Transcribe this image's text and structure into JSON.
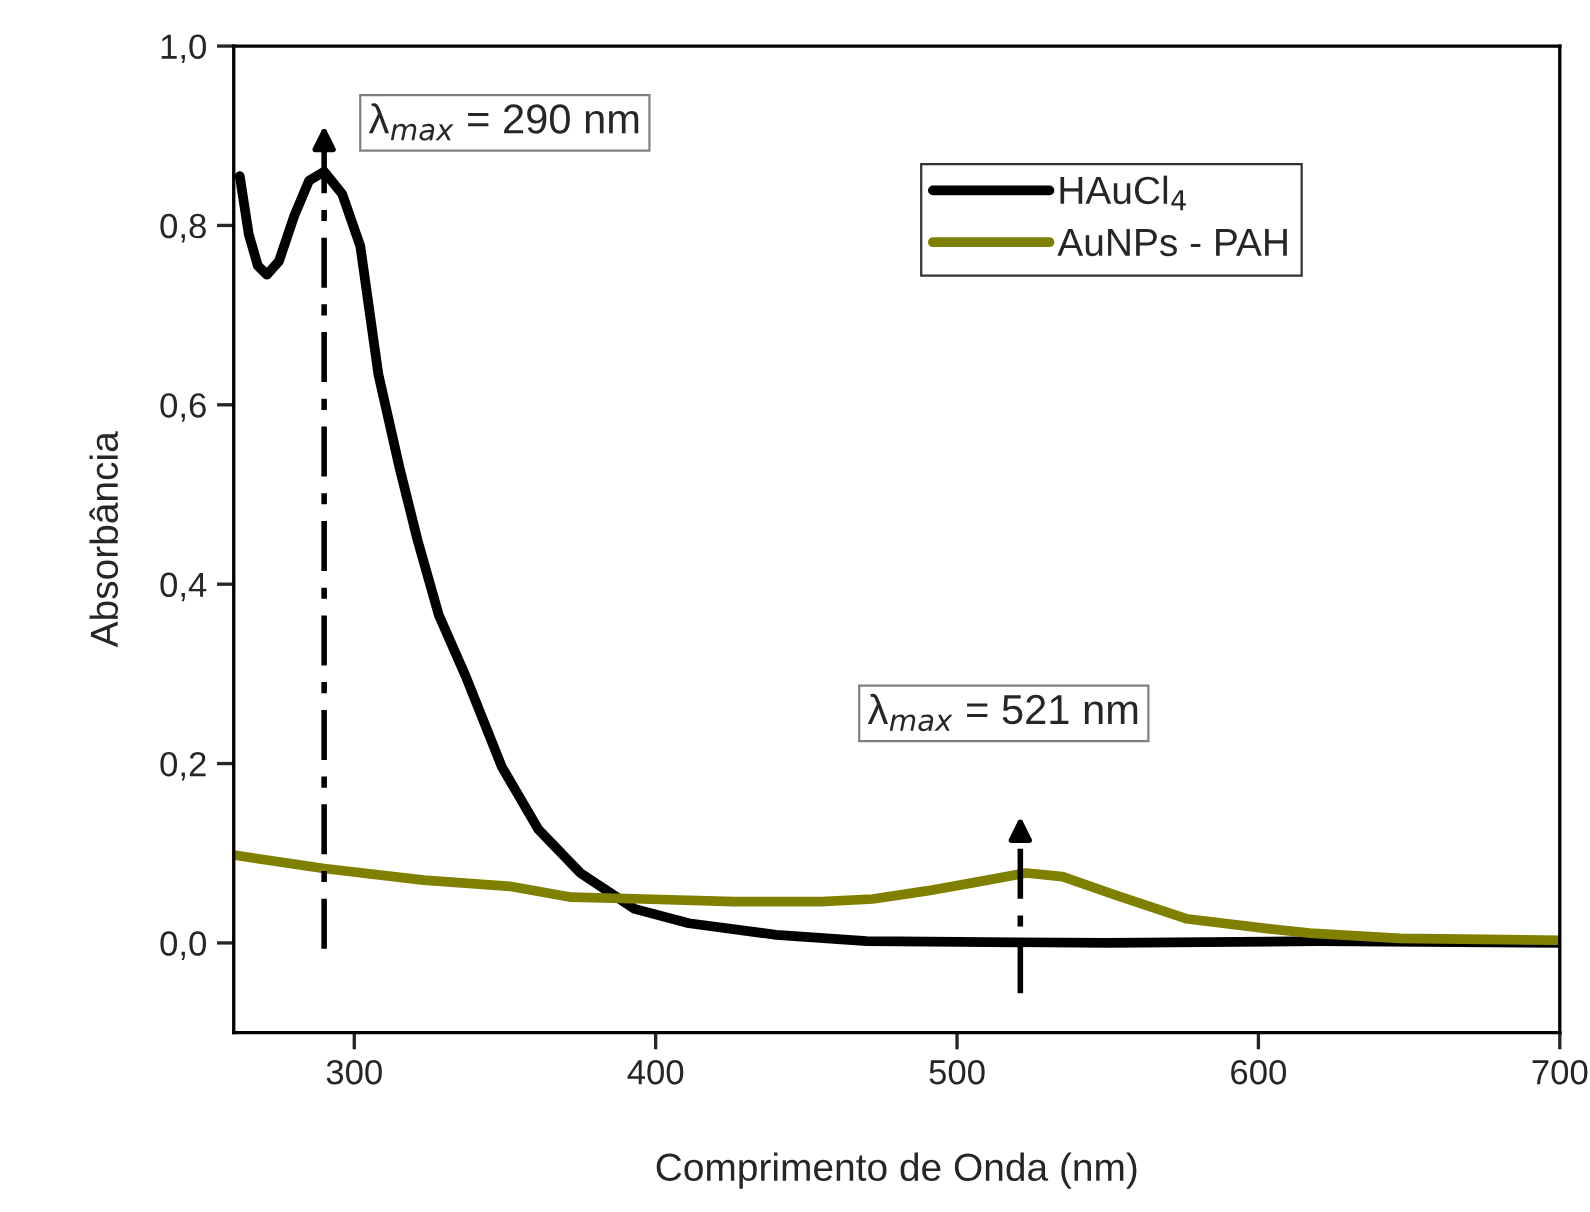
{
  "chart_data": {
    "type": "line",
    "xlabel": "Comprimento de Onda (nm)",
    "ylabel": "Absorbância",
    "xlim": [
      260,
      700
    ],
    "xticks": [
      300,
      400,
      500,
      600,
      700
    ],
    "ylim": [
      -0.1,
      1.0
    ],
    "yticks": [
      {
        "value": 0.0,
        "label": "0,0"
      },
      {
        "value": 0.2,
        "label": "0,2"
      },
      {
        "value": 0.4,
        "label": "0,4"
      },
      {
        "value": 0.6,
        "label": "0,6"
      },
      {
        "value": 0.8,
        "label": "0,8"
      },
      {
        "value": 1.0,
        "label": "1,0"
      }
    ],
    "grid": false,
    "legend": "top right",
    "marker": "none",
    "line_style": "solid",
    "series": [
      {
        "name": "HAuCl$_{4}$",
        "color": "#000000",
        "x": [
          262,
          265,
          268,
          271,
          275,
          280,
          285,
          290,
          296,
          302,
          308,
          315,
          321,
          328,
          337,
          349,
          361,
          375,
          393,
          411,
          440,
          470,
          550,
          620,
          700
        ],
        "values": [
          0.855,
          0.79,
          0.755,
          0.745,
          0.76,
          0.81,
          0.85,
          0.86,
          0.835,
          0.777,
          0.634,
          0.53,
          0.449,
          0.366,
          0.297,
          0.196,
          0.127,
          0.078,
          0.038,
          0.022,
          0.009,
          0.002,
          0.0,
          0.002,
          0.0
        ]
      },
      {
        "name": "AuNPs - PAH",
        "color": "#808000",
        "x": [
          260,
          290,
          323,
          352,
          372,
          396,
          426,
          455,
          472,
          490,
          505,
          523,
          535,
          552,
          576,
          603,
          617,
          647,
          700
        ],
        "values": [
          0.098,
          0.083,
          0.07,
          0.063,
          0.051,
          0.049,
          0.046,
          0.046,
          0.049,
          0.058,
          0.067,
          0.078,
          0.074,
          0.054,
          0.027,
          0.016,
          0.011,
          0.005,
          0.003
        ]
      }
    ],
    "ref_lines": [
      {
        "axis": "x",
        "value": 290,
        "label": "λ$_{max}$ = 290 nm",
        "color": "#000000",
        "line_style": "dashed"
      },
      {
        "axis": "x",
        "value": 521,
        "label": "λ$_{max}$ = 521 nm",
        "color": "#000000",
        "line_style": "dashed"
      }
    ]
  }
}
